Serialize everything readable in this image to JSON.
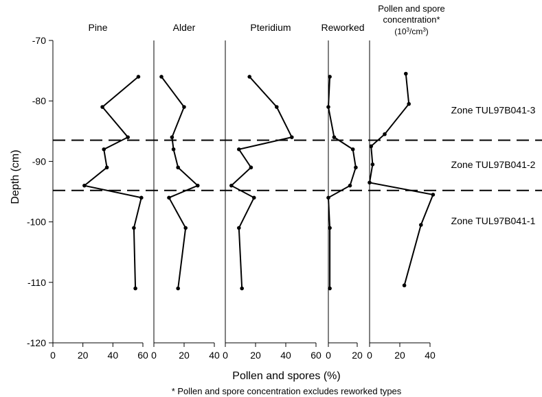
{
  "chart_data": {
    "type": "line",
    "ylabel": "Depth (cm)",
    "xlabel": "Pollen and spores (%)",
    "footnote": "* Pollen and spore concentration excludes reworked types",
    "ylim": [
      -120,
      -70
    ],
    "yticks": [
      -70,
      -80,
      -90,
      -100,
      -110,
      -120
    ],
    "zone_boundaries": [
      -86.5,
      -94.8
    ],
    "zones": [
      {
        "label": "Zone TUL97B041-3",
        "depth": -81.5
      },
      {
        "label": "Zone TUL97B041-2",
        "depth": -90.5
      },
      {
        "label": "Zone TUL97B041-1",
        "depth": -99.8
      }
    ],
    "panels": [
      {
        "title": "Pine",
        "xlim": [
          0,
          60
        ],
        "xticks": [
          "0",
          "20",
          "40",
          "60"
        ],
        "points": [
          {
            "x": 57,
            "y": -76
          },
          {
            "x": 33,
            "y": -81
          },
          {
            "x": 50,
            "y": -86
          },
          {
            "x": 34,
            "y": -88
          },
          {
            "x": 36,
            "y": -91
          },
          {
            "x": 21,
            "y": -94
          },
          {
            "x": 59,
            "y": -96
          },
          {
            "x": 54,
            "y": -101
          },
          {
            "x": 55,
            "y": -111
          }
        ]
      },
      {
        "title": "Alder",
        "xlim": [
          0,
          40
        ],
        "xticks": [
          "0",
          "20",
          "40"
        ],
        "points": [
          {
            "x": 5,
            "y": -76
          },
          {
            "x": 20,
            "y": -81
          },
          {
            "x": 12,
            "y": -86
          },
          {
            "x": 13,
            "y": -88
          },
          {
            "x": 16,
            "y": -91
          },
          {
            "x": 29,
            "y": -94
          },
          {
            "x": 10,
            "y": -96
          },
          {
            "x": 21,
            "y": -101
          },
          {
            "x": 16,
            "y": -111
          }
        ]
      },
      {
        "title": "Pteridium",
        "xlim": [
          0,
          60
        ],
        "xticks": [
          "0",
          "20",
          "40",
          "60"
        ],
        "points": [
          {
            "x": 16,
            "y": -76
          },
          {
            "x": 34,
            "y": -81
          },
          {
            "x": 44,
            "y": -86
          },
          {
            "x": 9,
            "y": -88
          },
          {
            "x": 17,
            "y": -91
          },
          {
            "x": 4,
            "y": -94
          },
          {
            "x": 19,
            "y": -96
          },
          {
            "x": 9,
            "y": -101
          },
          {
            "x": 11,
            "y": -111
          }
        ]
      },
      {
        "title": "Reworked",
        "xlim": [
          0,
          20
        ],
        "xticks": [
          "0",
          "20"
        ],
        "points": [
          {
            "x": 1,
            "y": -76
          },
          {
            "x": 0,
            "y": -81
          },
          {
            "x": 4,
            "y": -86
          },
          {
            "x": 17,
            "y": -88
          },
          {
            "x": 19,
            "y": -91
          },
          {
            "x": 15,
            "y": -94
          },
          {
            "x": 0,
            "y": -96
          },
          {
            "x": 1,
            "y": -101
          },
          {
            "x": 1,
            "y": -111
          }
        ]
      },
      {
        "title": "Pollen and spore concentration*",
        "unit_prefix": "(10",
        "unit_exp1": "3",
        "unit_mid": "/cm",
        "unit_exp2": "3",
        "unit_suffix": ")",
        "xlim": [
          0,
          40
        ],
        "xticks": [
          "0",
          "20",
          "40"
        ],
        "points": [
          {
            "x": 24,
            "y": -75.5
          },
          {
            "x": 26,
            "y": -80.5
          },
          {
            "x": 10,
            "y": -85.5
          },
          {
            "x": 1,
            "y": -87.5
          },
          {
            "x": 2,
            "y": -90.5
          },
          {
            "x": 0,
            "y": -93.5
          },
          {
            "x": 42,
            "y": -95.5
          },
          {
            "x": 34,
            "y": -100.5
          },
          {
            "x": 23,
            "y": -110.5
          }
        ]
      }
    ]
  }
}
